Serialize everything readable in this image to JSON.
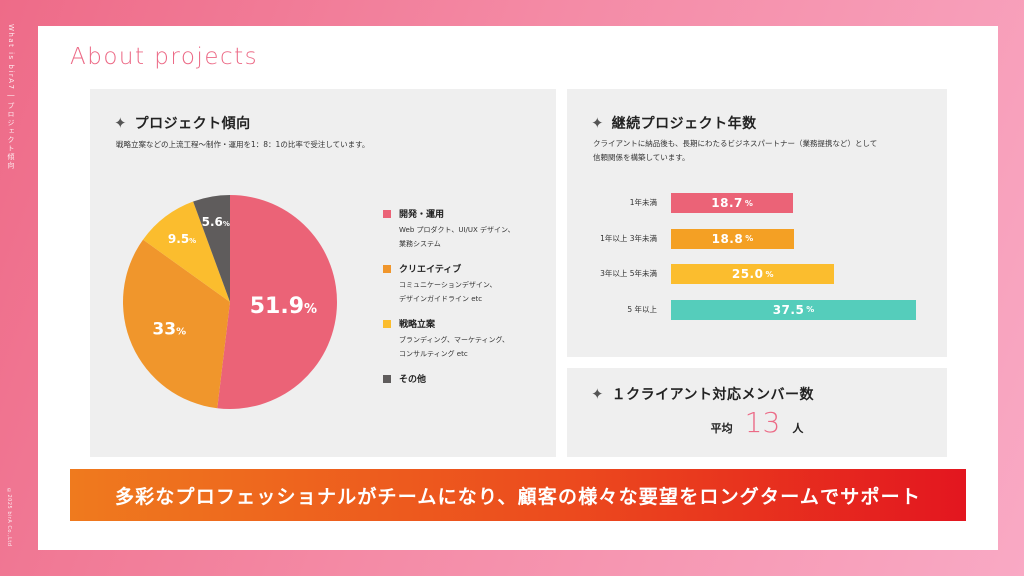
{
  "side": {
    "label": "What is birA7 | プロジェクト傾向",
    "copyright": "©2025 birA Co.,Ltd"
  },
  "page_title": "About projects",
  "icons": {
    "section_marker": "sparkle-icon"
  },
  "colors": {
    "dev": "#eb6377",
    "creative": "#f0962c",
    "strategy": "#fbbd2e",
    "other": "#5f5c5c",
    "bar_1": "#eb6377",
    "bar_2": "#f4a024",
    "bar_3": "#fbbd2e",
    "bar_4": "#55cdbb",
    "accent": "#ec6a86"
  },
  "trend": {
    "title": "プロジェクト傾向",
    "desc": "戦略立案などの上流工程〜制作・運用を1：8：1の比率で受注しています。",
    "legend": [
      {
        "name": "開発・運用",
        "desc1": "Web プロダクト、UI/UX デザイン、",
        "desc2": "業務システム"
      },
      {
        "name": "クリエイティブ",
        "desc1": "コミュニケーションデザイン、",
        "desc2": "デザインガイドライン etc"
      },
      {
        "name": "戦略立案",
        "desc1": "ブランディング、マーケティング、",
        "desc2": "コンサルティング etc"
      },
      {
        "name": "その他",
        "desc1": "",
        "desc2": ""
      }
    ]
  },
  "continuation": {
    "title": "継続プロジェクト年数",
    "desc1": "クライアントに納品後も、長期にわたるビジネスパートナー（業務提携など）として",
    "desc2": "信頼関係を構築しています。"
  },
  "members": {
    "title": "１クライアント対応メンバー数",
    "prefix": "平均",
    "value": "13",
    "suffix": "人"
  },
  "banner": "多彩なプロフェッショナルがチームになり、顧客の様々な要望をロングタームでサポート",
  "chart_data": [
    {
      "type": "pie",
      "title": "プロジェクト傾向",
      "categories": [
        "開発・運用",
        "クリエイティブ",
        "戦略立案",
        "その他"
      ],
      "values": [
        51.9,
        33,
        9.5,
        5.6
      ],
      "value_labels": [
        "51.9",
        "33",
        "9.5",
        "5.6"
      ],
      "unit": "%",
      "colors": [
        "#eb6377",
        "#f0962c",
        "#fbbd2e",
        "#5f5c5c"
      ],
      "legend_position": "right"
    },
    {
      "type": "bar",
      "orientation": "horizontal",
      "title": "継続プロジェクト年数",
      "categories": [
        "1年未満",
        "1年以上 3年未満",
        "3年以上 5年未満",
        "5 年以上"
      ],
      "values": [
        18.7,
        18.8,
        25.0,
        37.5
      ],
      "value_labels": [
        "18.7",
        "18.8",
        "25.0",
        "37.5"
      ],
      "unit": "%",
      "colors": [
        "#eb6377",
        "#f4a024",
        "#fbbd2e",
        "#55cdbb"
      ],
      "xlim": [
        0,
        37.5
      ]
    }
  ]
}
